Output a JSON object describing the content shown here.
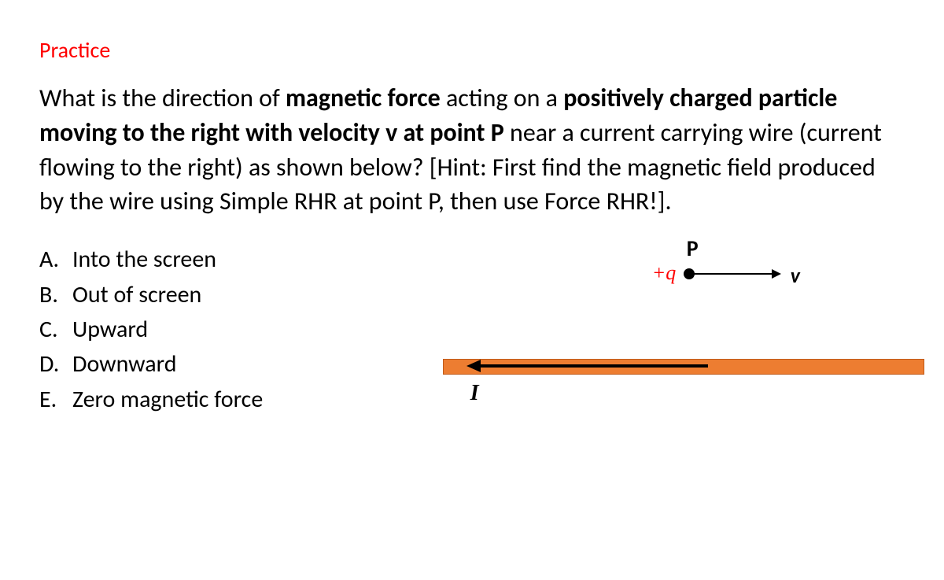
{
  "title": "Practice",
  "question": {
    "p1a": "What is the direction of ",
    "p1b": "magnetic force ",
    "p1c": "acting on a ",
    "p1d": "positively charged particle moving to the right with velocity v at point P ",
    "p1e": "near a current carrying wire (current flowing to the right) as shown below? [Hint: First find the magnetic field produced by the wire using Simple RHR at point P, then use Force RHR!]."
  },
  "options": [
    {
      "letter": "A.",
      "text": "Into the screen"
    },
    {
      "letter": "B.",
      "text": "Out of screen"
    },
    {
      "letter": "C.",
      "text": "Upward"
    },
    {
      "letter": "D.",
      "text": "Downward"
    },
    {
      "letter": "E.",
      "text": "Zero magnetic force"
    }
  ],
  "diagram": {
    "P_label": "P",
    "q_label": "+q",
    "v_label": "v",
    "I_label": "I",
    "wire_color": "#ed7d31",
    "wire_border": "#c05a18",
    "q_label_color": "#ff0000",
    "arrow_color": "#000000"
  },
  "colors": {
    "title": "#ff0000",
    "text": "#000000",
    "background": "#ffffff"
  }
}
